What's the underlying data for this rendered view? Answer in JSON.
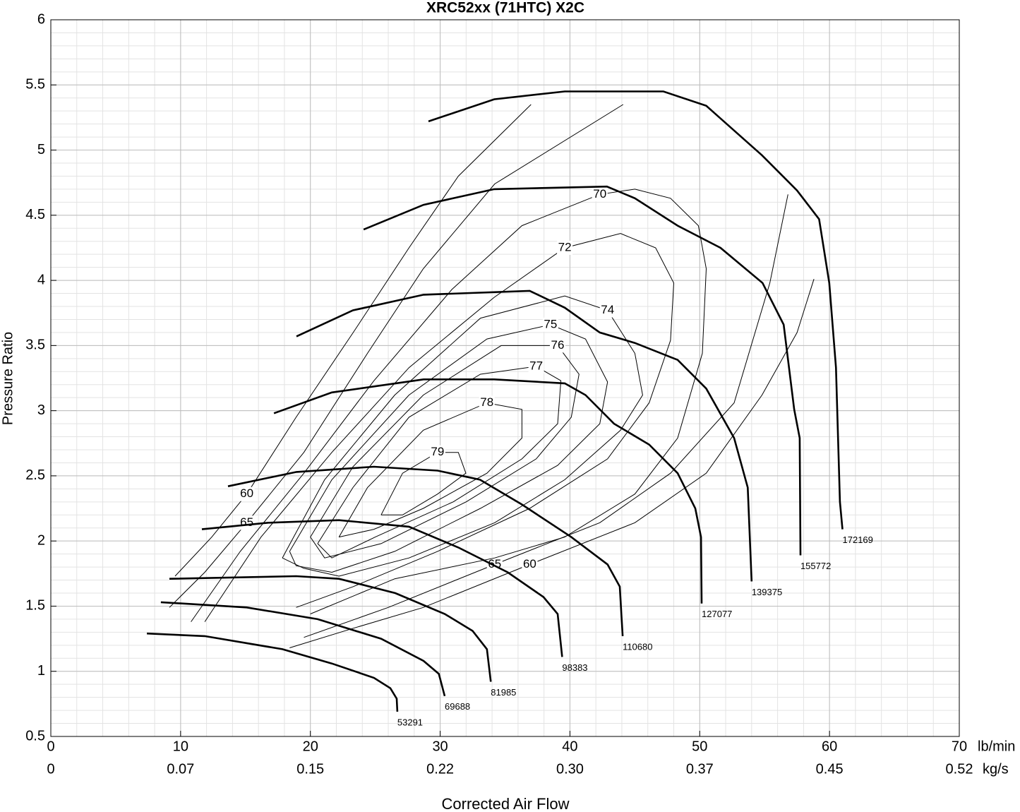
{
  "chart_data": {
    "type": "line",
    "title": "XRC52xx (71HTC) X2C",
    "y_label": "Pressure Ratio",
    "x_label": "Corrected Air Flow",
    "x_unit": "lb/min",
    "x2_unit": "kg/s",
    "xlim": [
      0,
      70
    ],
    "xticks": [
      0,
      10,
      20,
      30,
      40,
      50,
      60,
      70
    ],
    "x2ticks": [
      0,
      0.07,
      0.15,
      0.22,
      {
        "value": 0.3,
        "label": "0.30"
      },
      0.37,
      0.45,
      0.52
    ],
    "ylim": [
      0.5,
      6
    ],
    "yticks": [
      0.5,
      1,
      1.5,
      2,
      2.5,
      3,
      3.5,
      4,
      4.5,
      5,
      5.5,
      6
    ],
    "grid": true,
    "color": "#000000",
    "speed_lines": [
      {
        "name": "53291",
        "x": [
          7.4,
          11.86,
          17.84,
          21.65,
          24.9,
          26.16,
          26.65,
          26.7
        ],
        "y": [
          1.29,
          1.27,
          1.17,
          1.06,
          0.95,
          0.87,
          0.79,
          0.69
        ]
      },
      {
        "name": "69688",
        "x": [
          8.48,
          15.1,
          20.56,
          25.45,
          28.72,
          29.9,
          30.35
        ],
        "y": [
          1.53,
          1.49,
          1.4,
          1.25,
          1.08,
          0.98,
          0.81
        ]
      },
      {
        "name": "81985",
        "x": [
          9.14,
          18.9,
          22.2,
          26.54,
          30.35,
          32.5,
          33.6,
          33.9
        ],
        "y": [
          1.71,
          1.73,
          1.71,
          1.6,
          1.44,
          1.31,
          1.17,
          0.92
        ]
      },
      {
        "name": "98383",
        "x": [
          11.64,
          16.75,
          22.2,
          27.6,
          31.4,
          35.2,
          37.96,
          39.05,
          39.4
        ],
        "y": [
          2.09,
          2.14,
          2.16,
          2.11,
          1.95,
          1.76,
          1.57,
          1.44,
          1.11
        ]
      },
      {
        "name": "110680",
        "x": [
          13.65,
          18.93,
          24.9,
          29.8,
          33.07,
          36.3,
          40.1,
          42.9,
          43.84,
          44.06
        ],
        "y": [
          2.42,
          2.53,
          2.57,
          2.54,
          2.47,
          2.28,
          2.03,
          1.82,
          1.65,
          1.27
        ]
      },
      {
        "name": "127077",
        "x": [
          17.19,
          21.65,
          28.72,
          34.16,
          39.6,
          41.2,
          43.4,
          46.1,
          48.3,
          49.66,
          50.1,
          50.15
        ],
        "y": [
          2.98,
          3.14,
          3.24,
          3.24,
          3.21,
          3.12,
          2.9,
          2.74,
          2.52,
          2.25,
          2.03,
          1.52
        ]
      },
      {
        "name": "139375",
        "x": [
          18.93,
          23.28,
          28.72,
          36.9,
          39.6,
          42.3,
          45.0,
          48.3,
          50.5,
          52.65,
          53.7,
          54.0
        ],
        "y": [
          3.57,
          3.77,
          3.89,
          3.92,
          3.79,
          3.6,
          3.52,
          3.39,
          3.17,
          2.79,
          2.41,
          1.69
        ]
      },
      {
        "name": "155772",
        "x": [
          24.1,
          28.72,
          34.16,
          42.85,
          45.0,
          48.3,
          51.6,
          54.84,
          56.47,
          57.28,
          57.7,
          57.76
        ],
        "y": [
          4.39,
          4.58,
          4.7,
          4.72,
          4.63,
          4.42,
          4.25,
          3.98,
          3.66,
          3.01,
          2.79,
          1.89
        ]
      },
      {
        "name": "172169",
        "x": [
          29.1,
          34.16,
          39.6,
          47.2,
          50.5,
          54.8,
          57.5,
          59.2,
          59.98,
          60.5,
          60.8,
          61.0
        ],
        "y": [
          5.22,
          5.39,
          5.45,
          5.45,
          5.34,
          4.96,
          4.69,
          4.47,
          3.98,
          3.33,
          2.3,
          2.09
        ]
      }
    ],
    "efficiency_contours": [
      {
        "name": "60",
        "x": [
          9.57,
          12.4,
          15.1,
          18.9,
          23.3,
          27.6,
          31.4,
          37.0,
          null,
          18.4,
          23.3,
          28.7,
          36.9,
          45.0,
          50.5,
          54.8,
          57.5,
          58.8
        ],
        "y": [
          1.73,
          2.03,
          2.36,
          2.95,
          3.6,
          4.25,
          4.8,
          5.35,
          null,
          1.18,
          1.33,
          1.49,
          1.82,
          2.14,
          2.52,
          3.12,
          3.6,
          4.01
        ]
      },
      {
        "name": "65",
        "x": [
          9.14,
          11.86,
          15.1,
          19.5,
          24.4,
          28.7,
          34.2,
          44.1,
          null,
          19.5,
          26.0,
          34.2,
          42.3,
          47.75,
          52.65,
          55.4,
          56.8
        ],
        "y": [
          1.49,
          1.76,
          2.14,
          2.68,
          3.44,
          4.09,
          4.74,
          5.35,
          null,
          1.26,
          1.49,
          1.82,
          2.14,
          2.52,
          3.06,
          3.98,
          4.66
        ]
      },
      {
        "name": "70",
        "x": [
          10.8,
          14.6,
          19.5,
          24.9,
          30.9,
          36.3,
          42.3,
          45.0,
          47.75,
          49.9,
          50.5,
          50.2,
          48.3,
          45.0,
          39.6,
          34.2,
          26.5,
          20.0
        ],
        "y": [
          1.38,
          1.92,
          2.52,
          3.23,
          3.93,
          4.42,
          4.66,
          4.7,
          4.63,
          4.42,
          4.09,
          3.44,
          2.79,
          2.36,
          2.03,
          1.87,
          1.71,
          1.44
        ]
      },
      {
        "name": "72",
        "x": [
          11.86,
          16.2,
          21.65,
          27.6,
          34.16,
          39.6,
          43.9,
          46.6,
          48.0,
          47.75,
          46.1,
          42.9,
          36.9,
          29.8,
          23.3,
          18.9
        ],
        "y": [
          1.38,
          2.03,
          2.68,
          3.33,
          3.87,
          4.25,
          4.36,
          4.25,
          3.98,
          3.54,
          3.06,
          2.63,
          2.25,
          1.92,
          1.65,
          1.49
        ]
      },
      {
        "name": "74",
        "x": [
          17.84,
          21.1,
          26.5,
          33.1,
          39.6,
          42.9,
          45.0,
          45.6,
          43.9,
          39.6,
          34.2,
          27.6,
          22.2,
          19.5,
          17.84
        ],
        "y": [
          1.87,
          2.47,
          3.12,
          3.71,
          3.88,
          3.77,
          3.44,
          3.12,
          2.85,
          2.47,
          2.14,
          1.87,
          1.73,
          1.79,
          1.87
        ]
      },
      {
        "name": "75",
        "x": [
          18.4,
          21.65,
          27.6,
          33.6,
          38.5,
          41.2,
          42.9,
          42.3,
          39.05,
          33.1,
          26.5,
          21.65,
          18.9,
          18.4
        ],
        "y": [
          1.92,
          2.47,
          3.12,
          3.55,
          3.66,
          3.55,
          3.22,
          2.9,
          2.58,
          2.25,
          1.92,
          1.76,
          1.81,
          1.92
        ]
      },
      {
        "name": "76",
        "x": [
          20.0,
          23.28,
          28.7,
          34.7,
          39.05,
          40.7,
          40.1,
          37.4,
          32.0,
          25.45,
          21.1,
          20.0
        ],
        "y": [
          2.03,
          2.57,
          3.12,
          3.5,
          3.5,
          3.28,
          2.95,
          2.63,
          2.3,
          1.98,
          1.87,
          2.03
        ]
      },
      {
        "name": "77",
        "x": [
          20.56,
          23.28,
          27.6,
          33.1,
          37.4,
          39.3,
          39.05,
          36.3,
          31.0,
          25.0,
          21.65,
          20.56
        ],
        "y": [
          1.98,
          2.41,
          2.95,
          3.28,
          3.34,
          3.23,
          2.9,
          2.63,
          2.3,
          2.03,
          1.87,
          1.98
        ]
      },
      {
        "name": "78",
        "x": [
          22.2,
          24.4,
          28.7,
          33.6,
          36.3,
          36.3,
          33.6,
          28.7,
          24.9,
          22.2
        ],
        "y": [
          2.03,
          2.41,
          2.85,
          3.06,
          3.01,
          2.79,
          2.52,
          2.25,
          2.09,
          2.03
        ]
      },
      {
        "name": "79",
        "x": [
          25.45,
          27.1,
          29.8,
          31.4,
          31.98,
          29.8,
          27.1,
          25.45
        ],
        "y": [
          2.2,
          2.52,
          2.68,
          2.68,
          2.52,
          2.36,
          2.2,
          2.2
        ]
      }
    ]
  }
}
